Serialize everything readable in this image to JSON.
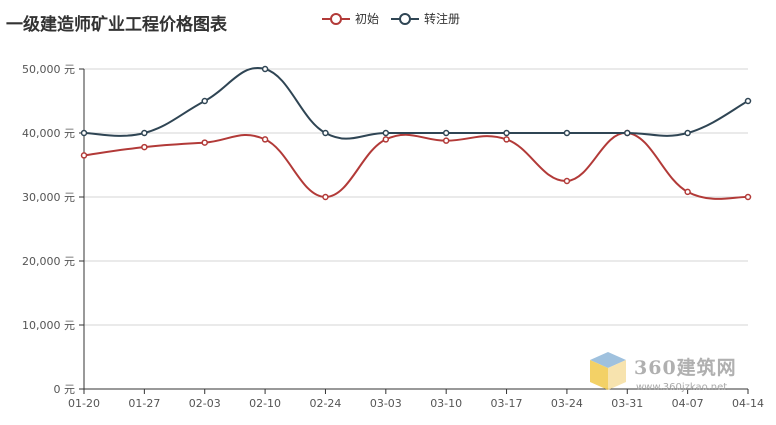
{
  "chart_data": {
    "type": "line",
    "title": "一级建造师矿业工程价格图表",
    "categories": [
      "01-20",
      "01-27",
      "02-03",
      "02-10",
      "02-24",
      "03-03",
      "03-10",
      "03-17",
      "03-24",
      "03-31",
      "04-07",
      "04-14"
    ],
    "series": [
      {
        "name": "初始",
        "color": "#b23a38",
        "values": [
          36500,
          37800,
          38500,
          39000,
          30000,
          39000,
          38800,
          39000,
          32500,
          40000,
          30800,
          30000
        ]
      },
      {
        "name": "转注册",
        "color": "#2f4554",
        "values": [
          40000,
          40000,
          45000,
          50000,
          40000,
          40000,
          40000,
          40000,
          40000,
          40000,
          40000,
          45000
        ]
      }
    ],
    "ylim": [
      0,
      50000
    ],
    "yticks": [
      0,
      10000,
      20000,
      30000,
      40000,
      50000
    ],
    "ytick_labels": [
      "0 元",
      "10,000 元",
      "20,000 元",
      "30,000 元",
      "40,000 元",
      "50,000 元"
    ],
    "grid": true,
    "legend_position": "top-center"
  },
  "watermark": {
    "brand": "360建筑网",
    "url": "www.360jzkao.net"
  }
}
